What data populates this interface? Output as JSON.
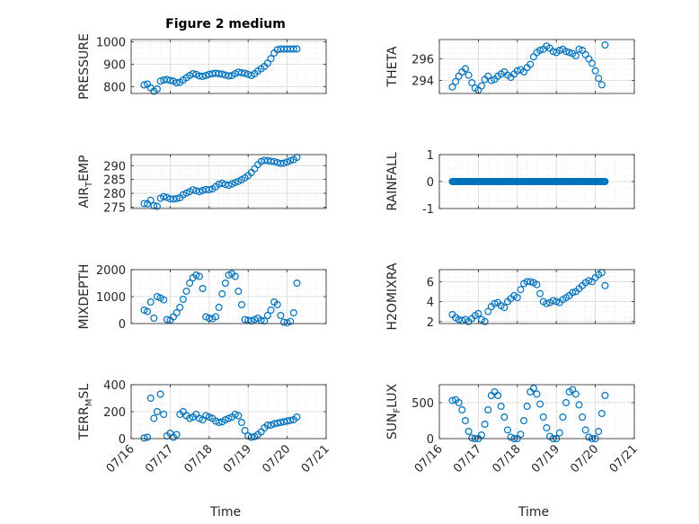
{
  "figure": {
    "title": "Figure 2 medium",
    "xlabel": "Time",
    "marker_color": "#0072BD",
    "grid_color": "#d9d9d9",
    "axis_color": "#262626"
  },
  "chart_data": [
    {
      "id": "pressure",
      "type": "scatter",
      "title": "Figure 2 medium",
      "ylabel": "PRESSURE",
      "ylim": [
        770,
        1010
      ],
      "yticks": [
        800,
        900,
        1000
      ],
      "ytick_labels": [
        "800",
        "900",
        "1000"
      ],
      "x": [
        "07/16 08:00",
        "07/16 10:00",
        "07/16 12:00",
        "07/16 14:00",
        "07/16 16:00",
        "07/16 18:00",
        "07/16 20:00",
        "07/16 22:00",
        "07/17 00:00",
        "07/17 02:00",
        "07/17 04:00",
        "07/17 06:00",
        "07/17 08:00",
        "07/17 10:00",
        "07/17 12:00",
        "07/17 14:00",
        "07/17 16:00",
        "07/17 18:00",
        "07/17 20:00",
        "07/17 22:00",
        "07/18 00:00",
        "07/18 02:00",
        "07/18 04:00",
        "07/18 06:00",
        "07/18 08:00",
        "07/18 10:00",
        "07/18 12:00",
        "07/18 14:00",
        "07/18 16:00",
        "07/18 18:00",
        "07/18 20:00",
        "07/18 22:00",
        "07/19 00:00",
        "07/19 02:00",
        "07/19 04:00",
        "07/19 06:00",
        "07/19 08:00",
        "07/19 10:00",
        "07/19 12:00",
        "07/19 14:00",
        "07/19 16:00",
        "07/19 18:00",
        "07/19 20:00",
        "07/19 22:00",
        "07/20 00:00",
        "07/20 02:00",
        "07/20 04:00",
        "07/20 06:00"
      ],
      "values": [
        808,
        812,
        795,
        780,
        790,
        825,
        830,
        832,
        828,
        825,
        818,
        820,
        830,
        840,
        850,
        858,
        855,
        848,
        846,
        850,
        855,
        858,
        860,
        858,
        856,
        852,
        848,
        850,
        858,
        865,
        862,
        860,
        855,
        850,
        858,
        870,
        880,
        890,
        905,
        925,
        950,
        965,
        968,
        968,
        968,
        968,
        968,
        968
      ]
    },
    {
      "id": "theta",
      "type": "scatter",
      "ylabel": "THETA",
      "ylim": [
        292.8,
        297.8
      ],
      "yticks": [
        294,
        296
      ],
      "ytick_labels": [
        "294",
        "296"
      ],
      "x": [
        "07/16 08:00",
        "07/16 10:00",
        "07/16 12:00",
        "07/16 14:00",
        "07/16 16:00",
        "07/16 18:00",
        "07/16 20:00",
        "07/16 22:00",
        "07/17 00:00",
        "07/17 02:00",
        "07/17 04:00",
        "07/17 06:00",
        "07/17 08:00",
        "07/17 10:00",
        "07/17 12:00",
        "07/17 14:00",
        "07/17 16:00",
        "07/17 18:00",
        "07/17 20:00",
        "07/17 22:00",
        "07/18 00:00",
        "07/18 02:00",
        "07/18 04:00",
        "07/18 06:00",
        "07/18 08:00",
        "07/18 10:00",
        "07/18 12:00",
        "07/18 14:00",
        "07/18 16:00",
        "07/18 18:00",
        "07/18 20:00",
        "07/18 22:00",
        "07/19 00:00",
        "07/19 02:00",
        "07/19 04:00",
        "07/19 06:00",
        "07/19 08:00",
        "07/19 10:00",
        "07/19 12:00",
        "07/19 14:00",
        "07/19 16:00",
        "07/19 18:00",
        "07/19 20:00",
        "07/19 22:00",
        "07/20 00:00",
        "07/20 02:00",
        "07/20 04:00",
        "07/20 06:00"
      ],
      "values": [
        293.4,
        293.9,
        294.4,
        294.8,
        295.1,
        294.5,
        293.8,
        293.3,
        293.1,
        293.5,
        294.1,
        294.4,
        294.0,
        294.1,
        294.4,
        294.6,
        294.8,
        294.5,
        294.3,
        294.6,
        294.9,
        295.0,
        294.8,
        295.2,
        295.5,
        296.2,
        296.6,
        296.8,
        296.9,
        297.2,
        297.0,
        296.7,
        296.6,
        296.8,
        296.9,
        296.7,
        296.6,
        296.5,
        296.3,
        296.9,
        296.8,
        296.4,
        296.0,
        295.6,
        294.9,
        294.2,
        293.6,
        297.3
      ]
    },
    {
      "id": "air_temp",
      "type": "scatter",
      "ylabel": "AIR_TEMP",
      "ylim": [
        274.5,
        294
      ],
      "yticks": [
        275,
        280,
        285,
        290
      ],
      "ytick_labels": [
        "275",
        "280",
        "285",
        "290"
      ],
      "x": [
        "07/16 08:00",
        "07/16 10:00",
        "07/16 12:00",
        "07/16 14:00",
        "07/16 16:00",
        "07/16 18:00",
        "07/16 20:00",
        "07/16 22:00",
        "07/17 00:00",
        "07/17 02:00",
        "07/17 04:00",
        "07/17 06:00",
        "07/17 08:00",
        "07/17 10:00",
        "07/17 12:00",
        "07/17 14:00",
        "07/17 16:00",
        "07/17 18:00",
        "07/17 20:00",
        "07/17 22:00",
        "07/18 00:00",
        "07/18 02:00",
        "07/18 04:00",
        "07/18 06:00",
        "07/18 08:00",
        "07/18 10:00",
        "07/18 12:00",
        "07/18 14:00",
        "07/18 16:00",
        "07/18 18:00",
        "07/18 20:00",
        "07/18 22:00",
        "07/19 00:00",
        "07/19 02:00",
        "07/19 04:00",
        "07/19 06:00",
        "07/19 08:00",
        "07/19 10:00",
        "07/19 12:00",
        "07/19 14:00",
        "07/19 16:00",
        "07/19 18:00",
        "07/19 20:00",
        "07/19 22:00",
        "07/20 00:00",
        "07/20 02:00",
        "07/20 04:00",
        "07/20 06:00"
      ],
      "values": [
        276.3,
        276.2,
        277.5,
        275.5,
        275.3,
        278.2,
        278.8,
        278.5,
        278.0,
        277.9,
        278.1,
        278.4,
        279.5,
        280.1,
        280.6,
        281.3,
        280.9,
        280.6,
        281.0,
        281.4,
        281.3,
        281.6,
        282.4,
        283.3,
        283.6,
        283.2,
        282.9,
        283.4,
        283.9,
        284.3,
        284.9,
        285.6,
        286.4,
        287.5,
        288.9,
        290.4,
        291.5,
        291.9,
        291.8,
        291.6,
        291.5,
        291.1,
        290.8,
        290.9,
        291.3,
        291.8,
        292.2,
        293.0
      ]
    },
    {
      "id": "rainfall",
      "type": "scatter",
      "ylabel": "RAINFALL",
      "ylim": [
        -1,
        1
      ],
      "yticks": [
        -1,
        0,
        1
      ],
      "ytick_labels": [
        "-1",
        "0",
        "1"
      ],
      "x_range": [
        "07/16 08:00",
        "07/20 06:00"
      ],
      "value_all": 0,
      "count": 150
    },
    {
      "id": "mixdepth",
      "type": "scatter",
      "ylabel": "MIXDEPTH",
      "ylim": [
        0,
        2000
      ],
      "yticks": [
        0,
        1000,
        2000
      ],
      "ytick_labels": [
        "0",
        "1000",
        "2000"
      ],
      "x": [
        "07/16 08:00",
        "07/16 10:00",
        "07/16 12:00",
        "07/16 14:00",
        "07/16 16:00",
        "07/16 18:00",
        "07/16 20:00",
        "07/16 22:00",
        "07/17 00:00",
        "07/17 02:00",
        "07/17 04:00",
        "07/17 06:00",
        "07/17 08:00",
        "07/17 10:00",
        "07/17 12:00",
        "07/17 14:00",
        "07/17 16:00",
        "07/17 18:00",
        "07/17 20:00",
        "07/17 22:00",
        "07/18 00:00",
        "07/18 02:00",
        "07/18 04:00",
        "07/18 06:00",
        "07/18 08:00",
        "07/18 10:00",
        "07/18 12:00",
        "07/18 14:00",
        "07/18 16:00",
        "07/18 18:00",
        "07/18 20:00",
        "07/18 22:00",
        "07/19 00:00",
        "07/19 02:00",
        "07/19 04:00",
        "07/19 06:00",
        "07/19 08:00",
        "07/19 10:00",
        "07/19 12:00",
        "07/19 14:00",
        "07/19 16:00",
        "07/19 18:00",
        "07/19 20:00",
        "07/19 22:00",
        "07/20 00:00",
        "07/20 02:00",
        "07/20 04:00",
        "07/20 06:00"
      ],
      "values": [
        500,
        450,
        800,
        200,
        1000,
        950,
        880,
        150,
        120,
        250,
        400,
        600,
        900,
        1200,
        1500,
        1700,
        1800,
        1750,
        1300,
        250,
        200,
        180,
        250,
        600,
        1100,
        1500,
        1800,
        1850,
        1750,
        1200,
        700,
        150,
        120,
        100,
        150,
        200,
        120,
        100,
        300,
        500,
        800,
        700,
        300,
        50,
        30,
        80,
        400,
        1500
      ]
    },
    {
      "id": "h2omixra",
      "type": "scatter",
      "ylabel": "H2OMIXRA",
      "ylim": [
        1.8,
        7.2
      ],
      "yticks": [
        2,
        4,
        6
      ],
      "ytick_labels": [
        "2",
        "4",
        "6"
      ],
      "x": [
        "07/16 08:00",
        "07/16 10:00",
        "07/16 12:00",
        "07/16 14:00",
        "07/16 16:00",
        "07/16 18:00",
        "07/16 20:00",
        "07/16 22:00",
        "07/17 00:00",
        "07/17 02:00",
        "07/17 04:00",
        "07/17 06:00",
        "07/17 08:00",
        "07/17 10:00",
        "07/17 12:00",
        "07/17 14:00",
        "07/17 16:00",
        "07/17 18:00",
        "07/17 20:00",
        "07/17 22:00",
        "07/18 00:00",
        "07/18 02:00",
        "07/18 04:00",
        "07/18 06:00",
        "07/18 08:00",
        "07/18 10:00",
        "07/18 12:00",
        "07/18 14:00",
        "07/18 16:00",
        "07/18 18:00",
        "07/18 20:00",
        "07/18 22:00",
        "07/19 00:00",
        "07/19 02:00",
        "07/19 04:00",
        "07/19 06:00",
        "07/19 08:00",
        "07/19 10:00",
        "07/19 12:00",
        "07/19 14:00",
        "07/19 16:00",
        "07/19 18:00",
        "07/19 20:00",
        "07/19 22:00",
        "07/20 00:00",
        "07/20 02:00",
        "07/20 04:00",
        "07/20 06:00"
      ],
      "values": [
        2.7,
        2.4,
        2.2,
        2.1,
        2.2,
        2.0,
        2.3,
        2.6,
        2.8,
        2.2,
        2.0,
        3.0,
        3.5,
        3.8,
        3.9,
        3.6,
        3.4,
        4.0,
        4.3,
        4.6,
        4.4,
        5.2,
        5.8,
        6.0,
        6.0,
        5.9,
        5.7,
        4.8,
        4.0,
        3.8,
        3.9,
        4.1,
        4.0,
        3.9,
        4.2,
        4.4,
        4.6,
        4.9,
        5.0,
        5.3,
        5.6,
        5.9,
        6.1,
        6.0,
        6.4,
        6.7,
        6.9,
        5.6
      ]
    },
    {
      "id": "terr_msl",
      "type": "scatter",
      "ylabel": "TERR_MSL",
      "ylim": [
        0,
        400
      ],
      "yticks": [
        0,
        200,
        400
      ],
      "ytick_labels": [
        "0",
        "200",
        "400"
      ],
      "x": [
        "07/16 08:00",
        "07/16 10:00",
        "07/16 12:00",
        "07/16 14:00",
        "07/16 16:00",
        "07/16 18:00",
        "07/16 20:00",
        "07/16 22:00",
        "07/17 00:00",
        "07/17 02:00",
        "07/17 04:00",
        "07/17 06:00",
        "07/17 08:00",
        "07/17 10:00",
        "07/17 12:00",
        "07/17 14:00",
        "07/17 16:00",
        "07/17 18:00",
        "07/17 20:00",
        "07/17 22:00",
        "07/18 00:00",
        "07/18 02:00",
        "07/18 04:00",
        "07/18 06:00",
        "07/18 08:00",
        "07/18 10:00",
        "07/18 12:00",
        "07/18 14:00",
        "07/18 16:00",
        "07/18 18:00",
        "07/18 20:00",
        "07/18 22:00",
        "07/19 00:00",
        "07/19 02:00",
        "07/19 04:00",
        "07/19 06:00",
        "07/19 08:00",
        "07/19 10:00",
        "07/19 12:00",
        "07/19 14:00",
        "07/19 16:00",
        "07/19 18:00",
        "07/19 20:00",
        "07/19 22:00",
        "07/20 00:00",
        "07/20 02:00",
        "07/20 04:00",
        "07/20 06:00"
      ],
      "values": [
        5,
        10,
        300,
        150,
        200,
        330,
        180,
        20,
        40,
        10,
        30,
        180,
        200,
        170,
        150,
        160,
        180,
        150,
        140,
        170,
        160,
        150,
        130,
        120,
        125,
        140,
        150,
        160,
        180,
        170,
        120,
        60,
        20,
        10,
        15,
        30,
        50,
        80,
        100,
        100,
        110,
        115,
        120,
        125,
        130,
        135,
        140,
        160
      ]
    },
    {
      "id": "sun_flux",
      "type": "scatter",
      "ylabel": "SUN_FLUX",
      "ylim": [
        0,
        750
      ],
      "yticks": [
        0,
        500
      ],
      "ytick_labels": [
        "0",
        "500"
      ],
      "x": [
        "07/16 08:00",
        "07/16 10:00",
        "07/16 12:00",
        "07/16 14:00",
        "07/16 16:00",
        "07/16 18:00",
        "07/16 20:00",
        "07/16 22:00",
        "07/17 00:00",
        "07/17 02:00",
        "07/17 04:00",
        "07/17 06:00",
        "07/17 08:00",
        "07/17 10:00",
        "07/17 12:00",
        "07/17 14:00",
        "07/17 16:00",
        "07/17 18:00",
        "07/17 20:00",
        "07/17 22:00",
        "07/18 00:00",
        "07/18 02:00",
        "07/18 04:00",
        "07/18 06:00",
        "07/18 08:00",
        "07/18 10:00",
        "07/18 12:00",
        "07/18 14:00",
        "07/18 16:00",
        "07/18 18:00",
        "07/18 20:00",
        "07/18 22:00",
        "07/19 00:00",
        "07/19 02:00",
        "07/19 04:00",
        "07/19 06:00",
        "07/19 08:00",
        "07/19 10:00",
        "07/19 12:00",
        "07/19 14:00",
        "07/19 16:00",
        "07/19 18:00",
        "07/19 20:00",
        "07/19 22:00",
        "07/20 00:00",
        "07/20 02:00",
        "07/20 04:00",
        "07/20 06:00"
      ],
      "values": [
        530,
        540,
        500,
        400,
        250,
        100,
        10,
        0,
        0,
        50,
        200,
        400,
        600,
        650,
        600,
        450,
        300,
        120,
        20,
        0,
        0,
        60,
        250,
        450,
        650,
        700,
        620,
        480,
        300,
        150,
        30,
        0,
        0,
        80,
        300,
        500,
        650,
        680,
        620,
        470,
        300,
        120,
        20,
        0,
        0,
        100,
        350,
        600
      ]
    }
  ],
  "x_axis": {
    "range": [
      "07/16 00:00",
      "07/21 00:00"
    ],
    "ticks": [
      "07/16",
      "07/17",
      "07/18",
      "07/19",
      "07/20",
      "07/21"
    ],
    "xlabel": "Time"
  }
}
